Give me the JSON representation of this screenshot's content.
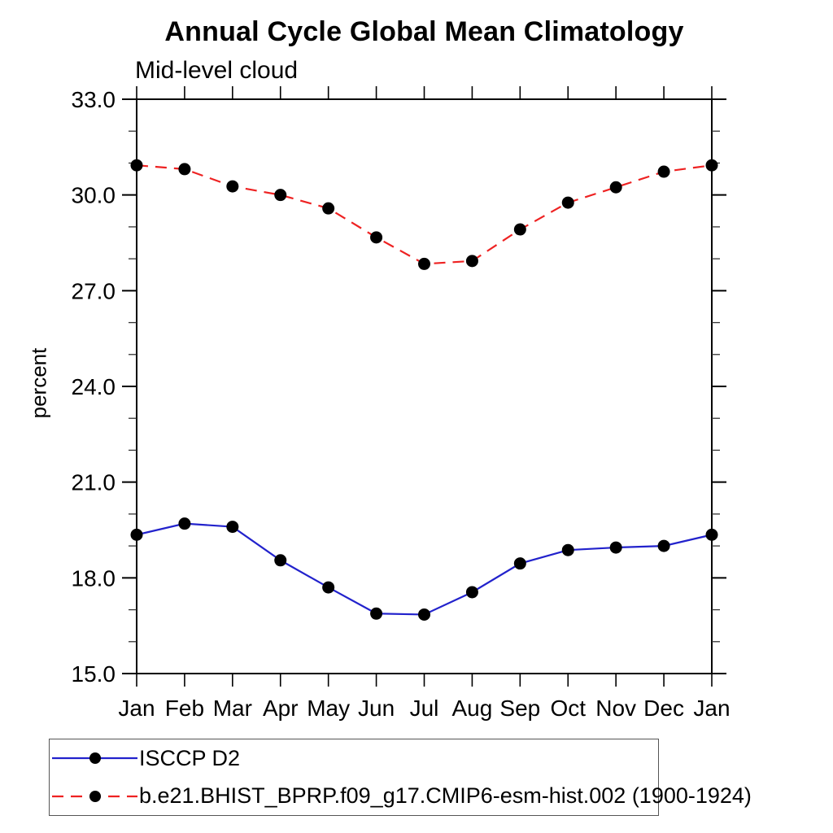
{
  "page": {
    "background": "#ffffff"
  },
  "chart_data": {
    "type": "line",
    "title": "Annual Cycle Global Mean Climatology",
    "subtitle": "Mid-level cloud",
    "ylabel": "percent",
    "xlabel": "",
    "categories": [
      "Jan",
      "Feb",
      "Mar",
      "Apr",
      "May",
      "Jun",
      "Jul",
      "Aug",
      "Sep",
      "Oct",
      "Nov",
      "Dec",
      "Jan"
    ],
    "ylim": [
      15.0,
      33.0
    ],
    "ytick_major": [
      15.0,
      18.0,
      21.0,
      24.0,
      27.0,
      30.0,
      33.0
    ],
    "ytick_labels": [
      "15.0",
      "18.0",
      "21.0",
      "24.0",
      "27.0",
      "30.0",
      "33.0"
    ],
    "ytick_minor_step": 1.0,
    "grid": "off",
    "legend_position": "bottom-left",
    "axis_color": "#000000",
    "marker": {
      "shape": "circle",
      "color": "#000000",
      "radius": 7.5
    },
    "series": [
      {
        "name": "ISCCP D2",
        "color": "#2222cc",
        "line_style": "solid",
        "values": [
          19.35,
          19.7,
          19.6,
          18.55,
          17.7,
          16.88,
          16.85,
          17.55,
          18.45,
          18.87,
          18.95,
          19.0,
          19.35
        ]
      },
      {
        "name": "b.e21.BHIST_BPRP.f09_g17.CMIP6-esm-hist.002 (1900-1924)",
        "color": "#ee2222",
        "line_style": "dashed",
        "values": [
          30.93,
          30.81,
          30.27,
          30.0,
          29.58,
          28.67,
          27.84,
          27.93,
          28.92,
          29.76,
          30.24,
          30.73,
          30.93
        ]
      }
    ]
  }
}
